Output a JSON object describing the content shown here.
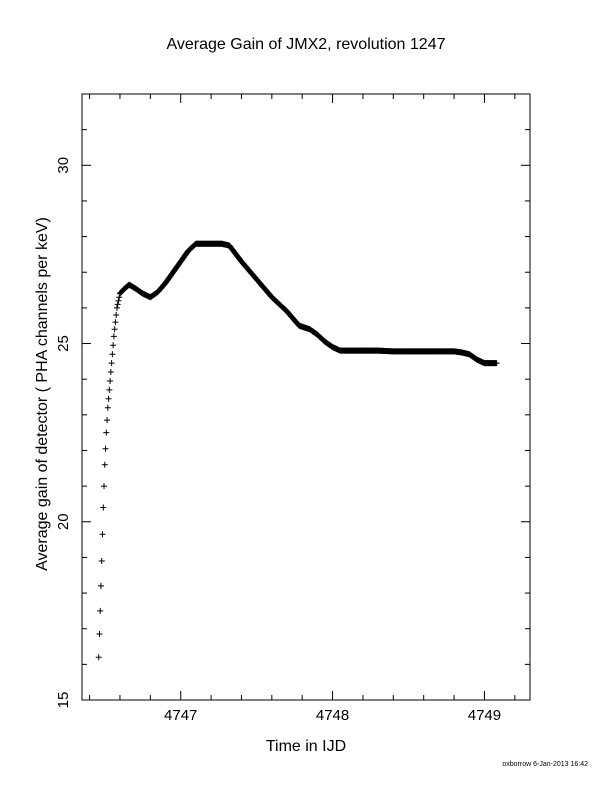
{
  "title": "Average Gain of JMX2, revolution 1247",
  "footer": "oxborrow  6-Jan-2013 16:42",
  "chart_data": {
    "type": "scatter",
    "marker": "+",
    "title": "Average Gain of JMX2, revolution 1247",
    "xlabel": "Time in IJD",
    "ylabel": "Average gain of detector ( PHA channels per keV)",
    "xlim": [
      4746.35,
      4749.3
    ],
    "ylim": [
      15,
      32
    ],
    "xticks": [
      4747,
      4748,
      4749
    ],
    "xtick_labels": [
      "4747",
      "4748",
      "4749"
    ],
    "yticks": [
      15,
      20,
      25,
      30
    ],
    "ytick_labels": [
      "15",
      "20",
      "25",
      "30"
    ],
    "grid": false,
    "series": [
      {
        "x": [
          4746.46,
          4746.47,
          4746.48,
          4746.49,
          4746.5,
          4746.51,
          4746.52,
          4746.53,
          4746.54,
          4746.55,
          4746.56,
          4746.57,
          4746.58,
          4746.59,
          4746.6,
          4746.62,
          4746.66,
          4746.7,
          4746.75,
          4746.8,
          4746.85,
          4746.9,
          4746.95,
          4747.0,
          4747.05,
          4747.1,
          4747.13,
          4747.2,
          4747.27,
          4747.32,
          4747.4,
          4747.5,
          4747.6,
          4747.7,
          4747.78,
          4747.85,
          4747.9,
          4747.95,
          4748.0,
          4748.05,
          4748.1,
          4748.2,
          4748.3,
          4748.4,
          4748.5,
          4748.6,
          4748.7,
          4748.8,
          4748.85,
          4748.9,
          4748.95,
          4749.0,
          4749.05,
          4749.08
        ],
        "y": [
          16.2,
          17.5,
          18.9,
          20.4,
          21.6,
          22.5,
          23.2,
          23.7,
          24.2,
          24.7,
          25.2,
          25.6,
          26.0,
          26.2,
          26.4,
          26.5,
          26.65,
          26.55,
          26.4,
          26.3,
          26.45,
          26.7,
          27.0,
          27.3,
          27.6,
          27.8,
          27.8,
          27.8,
          27.8,
          27.75,
          27.3,
          26.8,
          26.3,
          25.9,
          25.5,
          25.4,
          25.25,
          25.05,
          24.9,
          24.8,
          24.8,
          24.8,
          24.8,
          24.78,
          24.78,
          24.78,
          24.78,
          24.78,
          24.75,
          24.7,
          24.55,
          24.45,
          24.45,
          24.45
        ]
      }
    ]
  }
}
